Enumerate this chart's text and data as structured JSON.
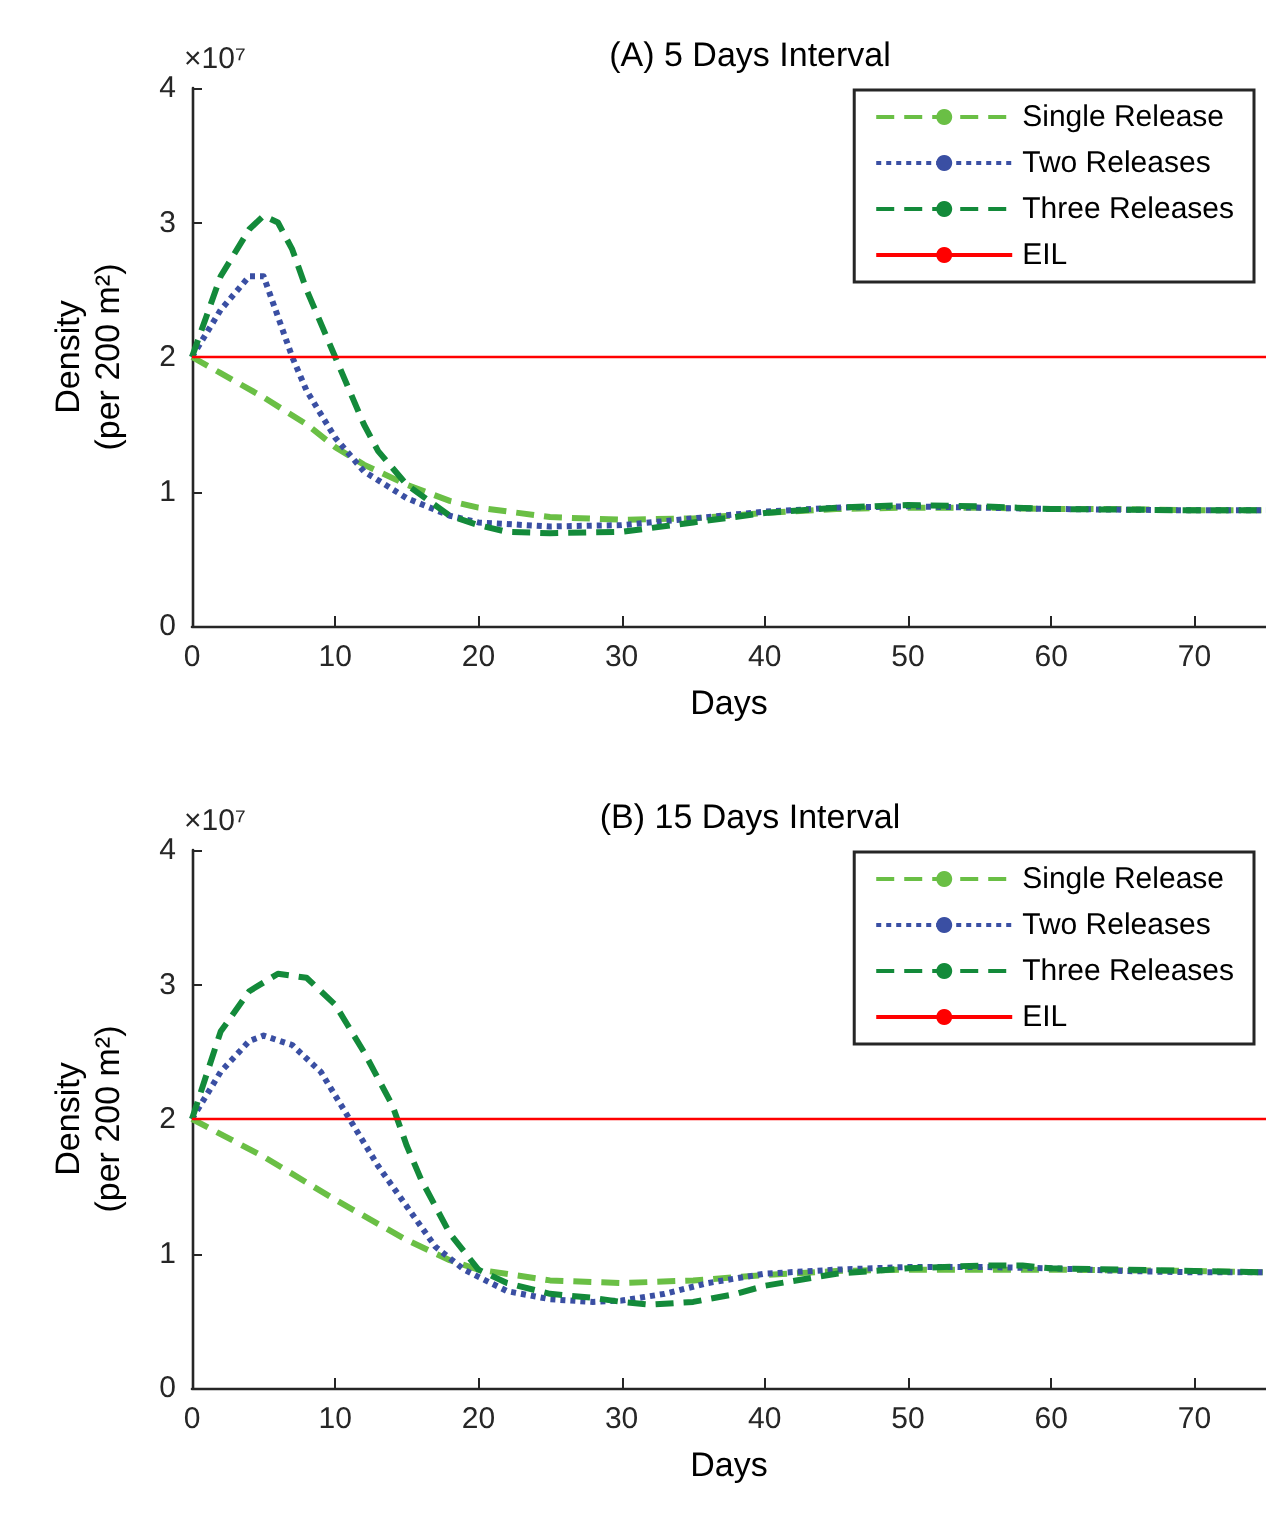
{
  "chart_data": [
    {
      "type": "line",
      "title": "(A) 5 Days Interval",
      "xlabel": "Days",
      "ylabel": "Density\n(per 200 m²)",
      "annotations": [
        "×10⁷"
      ],
      "xlim": [
        0,
        75
      ],
      "xticks": [
        0,
        10,
        20,
        30,
        40,
        50,
        60,
        70
      ],
      "ylim": [
        0,
        4
      ],
      "yticks": [
        0,
        1,
        2,
        3,
        4
      ],
      "grid": false,
      "legend": "top right",
      "marker": "none",
      "series": [
        {
          "name": "Single Release",
          "color": "#6abf45",
          "line_style": "dashed",
          "x": [
            0,
            2,
            5,
            8,
            10,
            12,
            15,
            18,
            20,
            25,
            30,
            35,
            40,
            45,
            50,
            55,
            60,
            65,
            70,
            75
          ],
          "values": [
            2.0,
            1.88,
            1.7,
            1.5,
            1.33,
            1.2,
            1.05,
            0.93,
            0.88,
            0.81,
            0.79,
            0.8,
            0.84,
            0.87,
            0.88,
            0.88,
            0.87,
            0.87,
            0.86,
            0.86
          ]
        },
        {
          "name": "Two Releases",
          "color": "#3a4fa3",
          "line_style": "dotted",
          "x": [
            0,
            2,
            4,
            5,
            6,
            7,
            8,
            10,
            12,
            15,
            18,
            20,
            25,
            30,
            35,
            40,
            45,
            50,
            55,
            60,
            70,
            75
          ],
          "values": [
            2.0,
            2.35,
            2.6,
            2.6,
            2.3,
            2.0,
            1.75,
            1.4,
            1.15,
            0.95,
            0.82,
            0.77,
            0.74,
            0.75,
            0.8,
            0.85,
            0.88,
            0.89,
            0.88,
            0.87,
            0.86,
            0.86
          ]
        },
        {
          "name": "Three Releases",
          "color": "#138a3a",
          "line_style": "dashed",
          "x": [
            0,
            2,
            4,
            5,
            6,
            7,
            8,
            10,
            12,
            13,
            15,
            18,
            20,
            22,
            25,
            30,
            35,
            40,
            45,
            50,
            55,
            60,
            70,
            75
          ],
          "values": [
            2.0,
            2.6,
            2.95,
            3.05,
            3.0,
            2.8,
            2.5,
            2.0,
            1.5,
            1.3,
            1.05,
            0.82,
            0.75,
            0.7,
            0.69,
            0.7,
            0.77,
            0.84,
            0.88,
            0.9,
            0.89,
            0.87,
            0.86,
            0.86
          ]
        },
        {
          "name": "EIL",
          "color": "#ff0000",
          "line_style": "solid",
          "x": [
            0,
            75
          ],
          "values": [
            2,
            2
          ]
        }
      ]
    },
    {
      "type": "line",
      "title": "(B) 15 Days Interval",
      "xlabel": "Days",
      "ylabel": "Density\n(per 200 m²)",
      "annotations": [
        "×10⁷"
      ],
      "xlim": [
        0,
        75
      ],
      "xticks": [
        0,
        10,
        20,
        30,
        40,
        50,
        60,
        70
      ],
      "ylim": [
        0,
        4
      ],
      "yticks": [
        0,
        1,
        2,
        3,
        4
      ],
      "grid": false,
      "legend": "top right",
      "marker": "none",
      "series": [
        {
          "name": "Single Release",
          "color": "#6abf45",
          "line_style": "dashed",
          "x": [
            0,
            5,
            10,
            15,
            18,
            20,
            25,
            30,
            35,
            40,
            45,
            50,
            55,
            60,
            70,
            75
          ],
          "values": [
            2.0,
            1.72,
            1.4,
            1.1,
            0.95,
            0.88,
            0.8,
            0.78,
            0.8,
            0.84,
            0.87,
            0.88,
            0.88,
            0.88,
            0.87,
            0.86
          ]
        },
        {
          "name": "Two Releases",
          "color": "#3a4fa3",
          "line_style": "dotted",
          "x": [
            0,
            2,
            4,
            5,
            7,
            9,
            11,
            13,
            15,
            17,
            19,
            22,
            25,
            28,
            30,
            33,
            36,
            40,
            45,
            50,
            55,
            60,
            65,
            70,
            75
          ],
          "values": [
            2.0,
            2.35,
            2.58,
            2.62,
            2.55,
            2.35,
            2.0,
            1.65,
            1.35,
            1.05,
            0.88,
            0.72,
            0.66,
            0.64,
            0.65,
            0.7,
            0.78,
            0.85,
            0.88,
            0.9,
            0.9,
            0.89,
            0.87,
            0.86,
            0.86
          ]
        },
        {
          "name": "Three Releases",
          "color": "#138a3a",
          "line_style": "dashed",
          "x": [
            0,
            2,
            4,
            6,
            8,
            10,
            12,
            14,
            15,
            16,
            18,
            20,
            22,
            25,
            28,
            30,
            32,
            35,
            38,
            40,
            45,
            50,
            55,
            58,
            60,
            65,
            70,
            75
          ],
          "values": [
            2.0,
            2.65,
            2.95,
            3.08,
            3.05,
            2.85,
            2.5,
            2.1,
            1.8,
            1.55,
            1.15,
            0.88,
            0.78,
            0.7,
            0.67,
            0.64,
            0.62,
            0.64,
            0.7,
            0.76,
            0.85,
            0.89,
            0.91,
            0.91,
            0.89,
            0.88,
            0.87,
            0.86
          ]
        },
        {
          "name": "EIL",
          "color": "#ff0000",
          "line_style": "solid",
          "x": [
            0,
            75
          ],
          "values": [
            2,
            2
          ]
        }
      ]
    }
  ]
}
